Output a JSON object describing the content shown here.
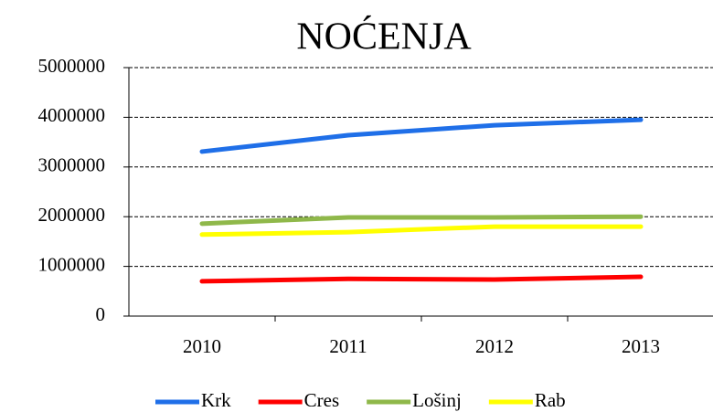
{
  "chart_data": {
    "type": "line",
    "title": "NOĆENJA",
    "categories": [
      "2010",
      "2011",
      "2012",
      "2013"
    ],
    "series": [
      {
        "name": "Krk",
        "color": "#1f6fe8",
        "values": [
          3310000,
          3640000,
          3840000,
          3950000
        ]
      },
      {
        "name": "Cres",
        "color": "#ff0000",
        "values": [
          700000,
          750000,
          735000,
          790000
        ]
      },
      {
        "name": "Lošinj",
        "color": "#8fb84a",
        "values": [
          1860000,
          1985000,
          1985000,
          2000000
        ]
      },
      {
        "name": "Rab",
        "color": "#ffff00",
        "values": [
          1640000,
          1690000,
          1800000,
          1800000
        ]
      }
    ],
    "ylim": [
      0,
      5000000
    ],
    "yticks": [
      0,
      1000000,
      2000000,
      3000000,
      4000000,
      5000000
    ],
    "grid": true,
    "legend": "bottom"
  }
}
